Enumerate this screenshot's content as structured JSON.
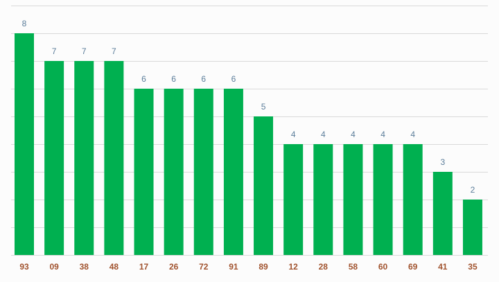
{
  "chart_data": {
    "type": "bar",
    "categories": [
      "93",
      "09",
      "38",
      "48",
      "17",
      "26",
      "72",
      "91",
      "89",
      "12",
      "28",
      "58",
      "60",
      "69",
      "41",
      "35"
    ],
    "values": [
      8,
      7,
      7,
      7,
      6,
      6,
      6,
      6,
      5,
      4,
      4,
      4,
      4,
      4,
      3,
      2
    ],
    "title": "",
    "xlabel": "",
    "ylabel": "",
    "ylim": [
      0,
      9
    ],
    "grid": true,
    "legend": "none",
    "colors": {
      "bar": "#00b050",
      "value_label": "#5b7d9a",
      "category_label": "#a0522d",
      "gridline": "#d9d9d9",
      "background": "#fcfcfc"
    }
  }
}
